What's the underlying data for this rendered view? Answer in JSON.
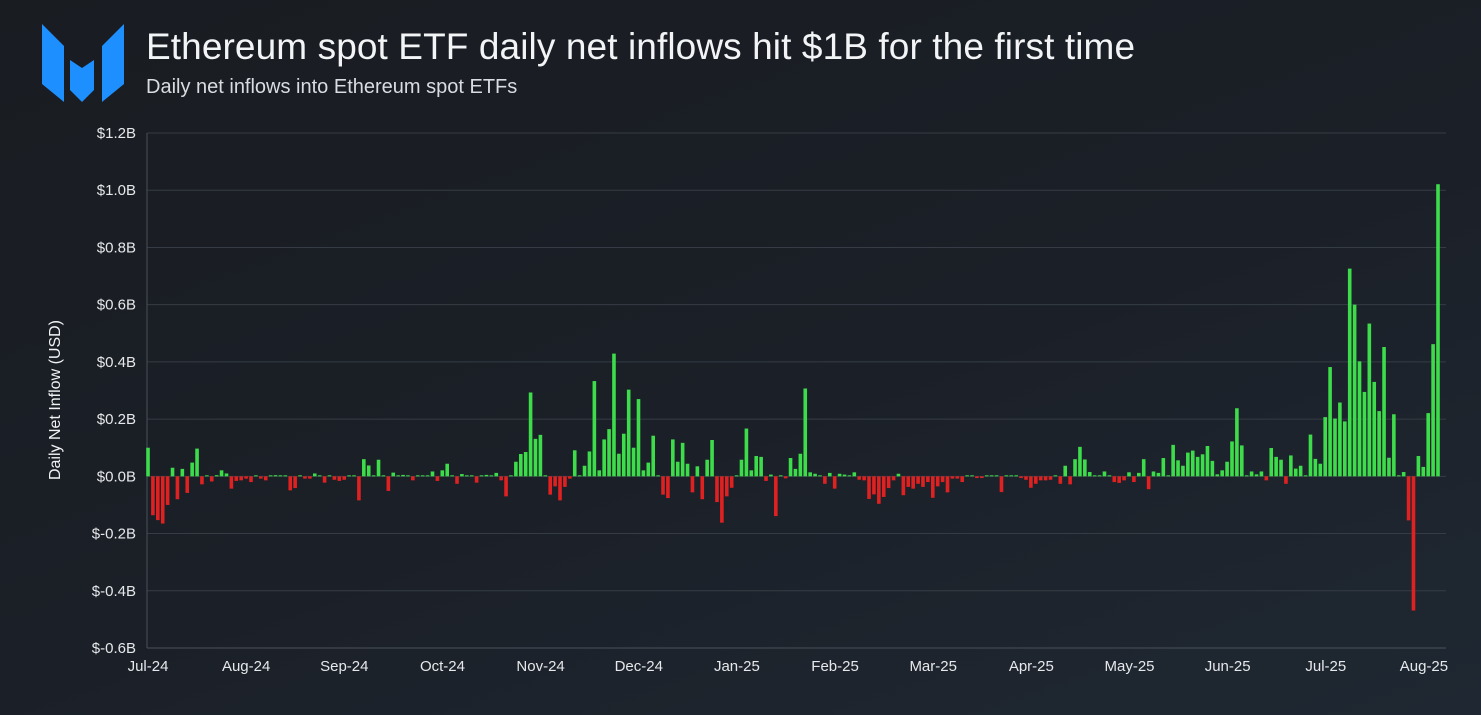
{
  "header": {
    "title": "Ethereum spot ETF daily net inflows hit $1B for the first time",
    "subtitle": "Daily net inflows into Ethereum spot ETFs",
    "logo": "blue-m-logo"
  },
  "chart_data": {
    "type": "bar",
    "title": "Ethereum spot ETF daily net inflows hit $1B for the first time",
    "subtitle": "Daily net inflows into Ethereum spot ETFs",
    "xlabel": "",
    "ylabel": "Daily Net Inflow (USD)",
    "units": "USD billions",
    "ylim": [
      -0.6,
      1.2
    ],
    "yticks": [
      1.2,
      1.0,
      0.8,
      0.6,
      0.4,
      0.2,
      0.0,
      -0.2,
      -0.4,
      -0.6
    ],
    "ytick_labels": [
      "$1.2B",
      "$1.0B",
      "$0.8B",
      "$0.6B",
      "$0.4B",
      "$0.2B",
      "$0.0B",
      "$-0.2B",
      "$-0.4B",
      "$-0.6B"
    ],
    "xtick_labels": [
      "Jul-24",
      "Aug-24",
      "Sep-24",
      "Oct-24",
      "Nov-24",
      "Dec-24",
      "Jan-25",
      "Feb-25",
      "Mar-25",
      "Apr-25",
      "May-25",
      "Jun-25",
      "Jul-25",
      "Aug-25"
    ],
    "grid": true,
    "legend": "none",
    "colors": {
      "positive": "#3ddc4a",
      "negative": "#e02121",
      "grid": "#363c45",
      "axis": "#4a5059"
    },
    "values": [
      0.1,
      -0.136,
      -0.153,
      -0.165,
      -0.1,
      0.03,
      -0.08,
      0.026,
      -0.058,
      0.048,
      0.097,
      -0.028,
      0,
      -0.018,
      0.004,
      0.021,
      0.01,
      -0.043,
      -0.016,
      -0.014,
      -0.008,
      -0.02,
      0,
      -0.008,
      -0.014,
      0,
      0.004,
      0,
      0,
      -0.049,
      -0.041,
      0,
      -0.008,
      -0.008,
      0.01,
      0,
      -0.022,
      0,
      -0.012,
      -0.016,
      -0.012,
      0.003,
      0.003,
      -0.084,
      0.06,
      0.038,
      0,
      0.058,
      0,
      -0.051,
      0.013,
      0,
      0.005,
      0,
      -0.014,
      0,
      0.002,
      0,
      0.017,
      -0.016,
      0.021,
      0.044,
      0,
      -0.026,
      0.008,
      0,
      0,
      -0.022,
      0,
      0.005,
      0.002,
      0.012,
      -0.014,
      -0.07,
      0,
      0.051,
      0.078,
      0.085,
      0.293,
      0.131,
      0.145,
      0,
      -0.064,
      -0.035,
      -0.084,
      -0.037,
      -0.008,
      0.091,
      0.002,
      0.037,
      0.087,
      0.333,
      0.021,
      0.129,
      0.165,
      0.429,
      0.079,
      0.149,
      0.303,
      0.1,
      0.27,
      0.021,
      0.048,
      0.142,
      0,
      -0.064,
      -0.076,
      0.129,
      0.051,
      0.117,
      0.044,
      -0.056,
      0.035,
      -0.08,
      0.058,
      0.127,
      -0.09,
      -0.162,
      -0.07,
      -0.04,
      0,
      0.058,
      0.167,
      0.021,
      0.071,
      0.068,
      -0.016,
      0.006,
      -0.139,
      0,
      -0.007,
      0.064,
      0.026,
      0.079,
      0.307,
      0.014,
      0.009,
      0,
      -0.026,
      0.012,
      -0.043,
      0.009,
      0.006,
      0.002,
      0.014,
      -0.012,
      -0.014,
      -0.079,
      -0.063,
      -0.096,
      -0.072,
      -0.041,
      -0.014,
      0.009,
      -0.066,
      -0.037,
      -0.043,
      -0.026,
      -0.037,
      -0.02,
      -0.075,
      -0.035,
      -0.02,
      -0.056,
      -0.008,
      -0.008,
      -0.02,
      0,
      0,
      -0.006,
      -0.006,
      0.003,
      0.003,
      0,
      -0.055,
      0,
      0,
      0,
      -0.006,
      -0.012,
      -0.04,
      -0.026,
      -0.014,
      -0.014,
      -0.012,
      0,
      -0.026,
      0.037,
      -0.028,
      0.06,
      0.103,
      0.059,
      0.015,
      0,
      0.003,
      0.017,
      0,
      -0.02,
      -0.023,
      -0.014,
      0.014,
      -0.02,
      0.012,
      0.06,
      -0.045,
      0.017,
      0.012,
      0.064,
      0,
      0.11,
      0.056,
      0.037,
      0.083,
      0.09,
      0.068,
      0.077,
      0.106,
      0.054,
      0.007,
      0.021,
      0.051,
      0.122,
      0.238,
      0.108,
      0,
      0.017,
      0.007,
      0.017,
      -0.014,
      0.099,
      0.068,
      0.058,
      -0.026,
      0.073,
      0.027,
      0.037,
      0,
      0.146,
      0.061,
      0.044,
      0.207,
      0.382,
      0.202,
      0.258,
      0.192,
      0.726,
      0.6,
      0.402,
      0.295,
      0.534,
      0.33,
      0.228,
      0.452,
      0.065,
      0.217,
      0.003,
      0.015,
      -0.154,
      -0.469,
      0.071,
      0.033,
      0.221,
      0.462,
      1.021
    ]
  }
}
